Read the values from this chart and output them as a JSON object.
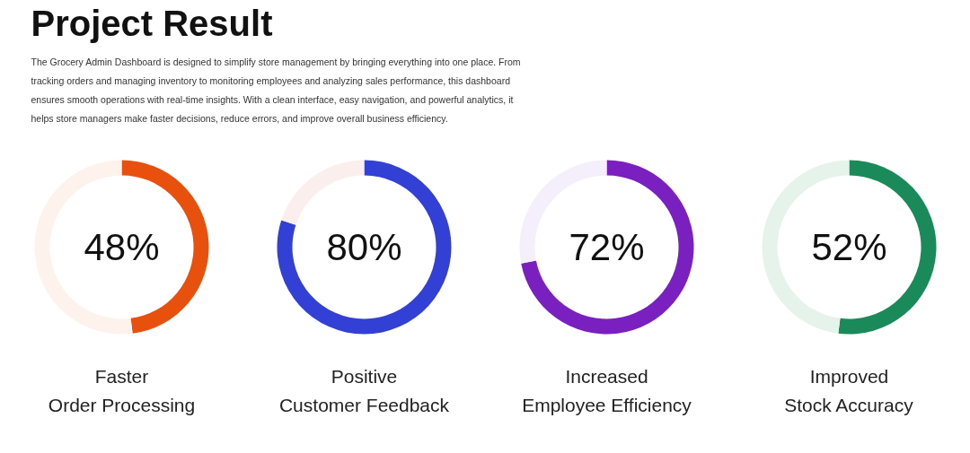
{
  "chart_data": [
    {
      "type": "other",
      "title": "Project Result",
      "annotations": [
        "The Grocery Admin Dashboard is designed to simplify store management by bringing everything into one place. From",
        "tracking orders and managing inventory to monitoring employees and analyzing sales performance, this dashboard",
        "ensures smooth operations with real-time insights. With a clean interface, easy navigation, and powerful analytics, it",
        "helps store managers make faster decisions, reduce errors, and improve overall business efficiency."
      ]
    },
    {
      "type": "donut",
      "title": "Faster\nOrder Processing",
      "categories": [
        null,
        null
      ],
      "values": [
        48,
        52
      ],
      "colors": [
        "#e8500e",
        "#fdf2ec"
      ],
      "annotations": [
        "48%"
      ]
    },
    {
      "type": "donut",
      "title": "Positive\nCustomer Feedback",
      "categories": [
        null,
        null
      ],
      "values": [
        80,
        20
      ],
      "colors": [
        "#3340d6",
        "#fbefee"
      ],
      "annotations": [
        "80%"
      ]
    },
    {
      "type": "donut",
      "title": "Increased\nEmployee Efficiency",
      "categories": [
        null,
        null
      ],
      "values": [
        72,
        28
      ],
      "colors": [
        "#7a1fc0",
        "#f5eefb"
      ],
      "annotations": [
        "72%"
      ]
    },
    {
      "type": "donut",
      "title": "Improved\nStock Accuracy",
      "categories": [
        null,
        null
      ],
      "values": [
        52,
        48
      ],
      "colors": [
        "#1b8a5a",
        "#e6f3eb"
      ],
      "annotations": [
        "52%"
      ]
    }
  ]
}
